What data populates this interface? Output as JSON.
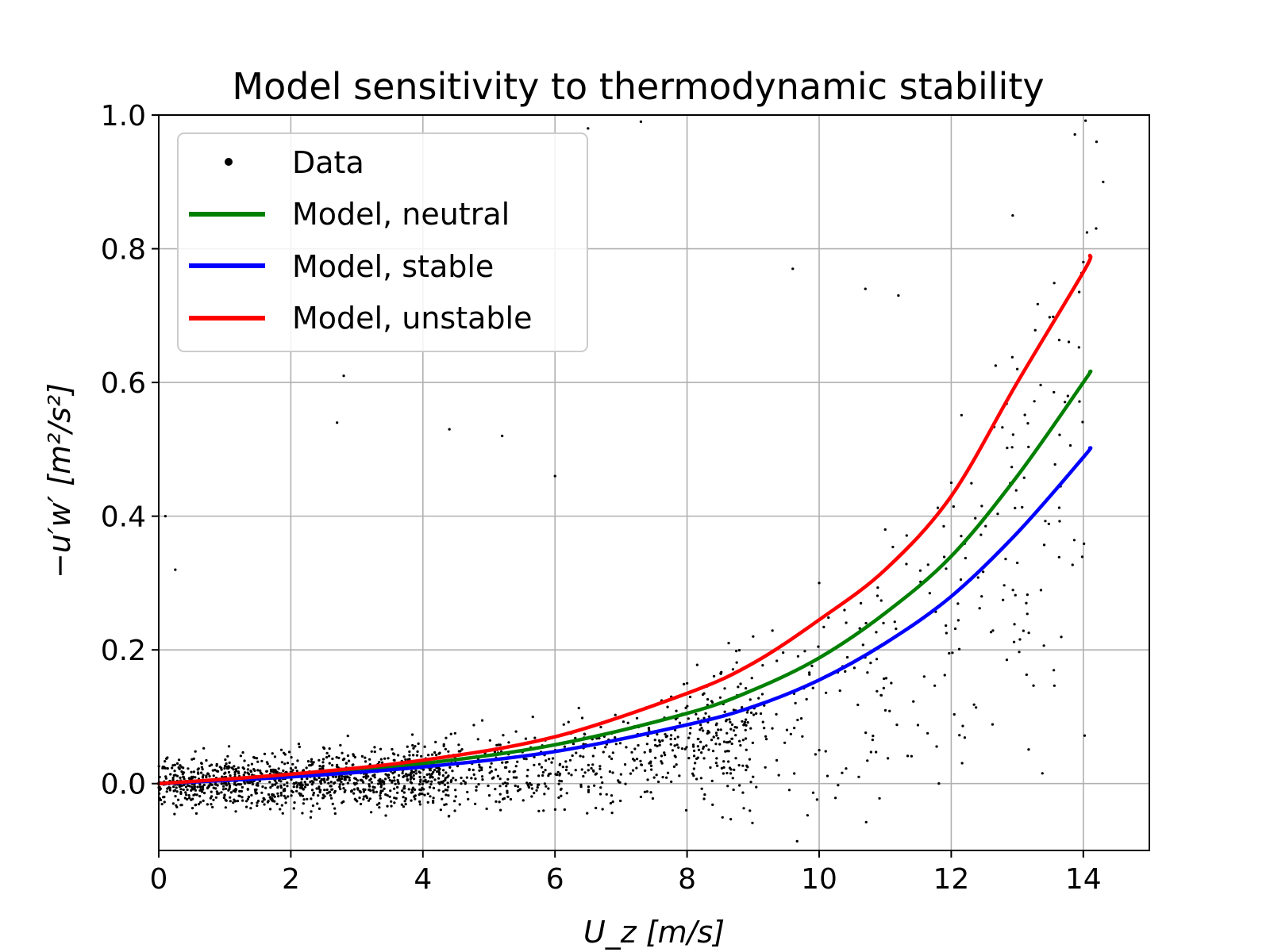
{
  "chart_data": {
    "type": "scatter",
    "title": "Model sensitivity to thermodynamic stability",
    "xlabel": "U_z [m/s]",
    "ylabel": "−u′w′ [m²/s²]",
    "xlim": [
      0,
      15
    ],
    "ylim": [
      -0.1,
      1.0
    ],
    "x_ticks": [
      0,
      2,
      4,
      6,
      8,
      10,
      12,
      14
    ],
    "y_ticks": [
      0.0,
      0.2,
      0.4,
      0.6,
      0.8,
      1.0
    ],
    "x_tick_labels": [
      "0",
      "2",
      "4",
      "6",
      "8",
      "10",
      "12",
      "14"
    ],
    "y_tick_labels": [
      "0.0",
      "0.2",
      "0.4",
      "0.6",
      "0.8",
      "1.0"
    ],
    "grid": true,
    "legend_position": "top-left",
    "scatter_series": {
      "name": "Data",
      "color": "#000000",
      "approx_count": 12000,
      "trend_description": "dense cloud near 0 at low wind speed, spreading and rising steeply above 8 m/s",
      "sample_points": [
        [
          0.5,
          0.01
        ],
        [
          1.0,
          0.0
        ],
        [
          1.5,
          0.02
        ],
        [
          2.0,
          0.01
        ],
        [
          3.0,
          0.02
        ],
        [
          4.0,
          0.03
        ],
        [
          5.0,
          0.05
        ],
        [
          6.0,
          0.07
        ],
        [
          7.0,
          0.1
        ],
        [
          8.0,
          0.15
        ],
        [
          9.0,
          0.22
        ],
        [
          10.0,
          0.3
        ],
        [
          11.0,
          0.38
        ],
        [
          12.0,
          0.45
        ],
        [
          13.0,
          0.62
        ],
        [
          14.0,
          0.78
        ],
        [
          0.1,
          0.4
        ],
        [
          0.25,
          0.32
        ],
        [
          2.7,
          0.54
        ],
        [
          2.8,
          0.61
        ],
        [
          4.4,
          0.53
        ],
        [
          5.2,
          0.52
        ],
        [
          6.0,
          0.46
        ],
        [
          7.3,
          0.99
        ],
        [
          6.5,
          0.98
        ],
        [
          9.6,
          0.77
        ],
        [
          10.7,
          0.74
        ],
        [
          11.2,
          0.73
        ],
        [
          14.2,
          0.96
        ],
        [
          14.3,
          0.9
        ],
        [
          10.6,
          0.01
        ],
        [
          10.0,
          0.05
        ]
      ]
    },
    "series": [
      {
        "name": "Model, neutral",
        "color": "#008000",
        "x": [
          0,
          2,
          4,
          6,
          8,
          9,
          10,
          11,
          12,
          13,
          14,
          14.1
        ],
        "y": [
          0.0,
          0.012,
          0.03,
          0.058,
          0.105,
          0.14,
          0.188,
          0.255,
          0.34,
          0.46,
          0.6,
          0.616
        ]
      },
      {
        "name": "Model, stable",
        "color": "#0000ff",
        "x": [
          0,
          2,
          4,
          6,
          8,
          9,
          10,
          11,
          12,
          13,
          14,
          14.1
        ],
        "y": [
          0.0,
          0.01,
          0.025,
          0.048,
          0.088,
          0.115,
          0.155,
          0.21,
          0.28,
          0.375,
          0.488,
          0.502
        ]
      },
      {
        "name": "Model, unstable",
        "color": "#ff0000",
        "x": [
          0,
          2,
          4,
          6,
          8,
          9,
          10,
          11,
          12,
          13,
          14,
          14.1
        ],
        "y": [
          0.0,
          0.014,
          0.035,
          0.07,
          0.135,
          0.18,
          0.245,
          0.32,
          0.43,
          0.6,
          0.765,
          0.79
        ]
      }
    ]
  }
}
